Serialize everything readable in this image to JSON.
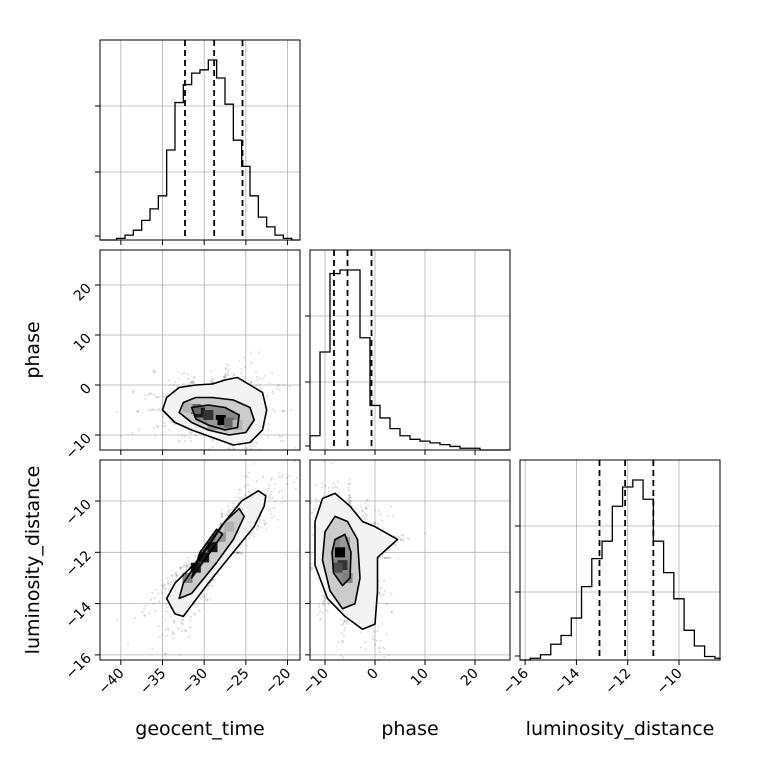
{
  "chart_data": {
    "type": "corner",
    "parameters": [
      "geocent_time",
      "phase",
      "luminosity_distance"
    ],
    "axis_labels": {
      "x": [
        "geocent_time",
        "phase",
        "luminosity_distance"
      ],
      "y": [
        "",
        "phase",
        "luminosity_distance"
      ]
    },
    "ranges": {
      "geocent_time": [
        -42.5,
        -18.5
      ],
      "phase": [
        -13.0,
        27.0
      ],
      "luminosity_distance": [
        -16.2,
        -8.4
      ]
    },
    "ticks": {
      "geocent_time": [
        -40,
        -35,
        -30,
        -25,
        -20
      ],
      "phase": [
        -10,
        0,
        10,
        20
      ],
      "luminosity_distance": [
        -16,
        -14,
        -12,
        -10
      ]
    },
    "grid": true,
    "quantiles": {
      "geocent_time": [
        -32.3,
        -28.8,
        -25.4
      ],
      "phase": [
        -8.2,
        -5.5,
        -0.7
      ],
      "luminosity_distance": [
        -13.1,
        -12.1,
        -11.0
      ]
    },
    "histograms": {
      "geocent_time": {
        "bin_edges": [
          -42.5,
          -41.5,
          -40.5,
          -39.5,
          -38.5,
          -37.5,
          -36.5,
          -35.5,
          -34.5,
          -33.5,
          -32.5,
          -31.5,
          -30.5,
          -29.5,
          -28.5,
          -27.5,
          -26.5,
          -25.5,
          -24.5,
          -23.5,
          -22.5,
          -21.5,
          -20.5,
          -19.5,
          -18.5
        ],
        "counts": [
          0,
          0,
          1,
          3,
          6,
          12,
          19,
          27,
          55,
          84,
          95,
          102,
          104,
          110,
          99,
          83,
          61,
          45,
          27,
          14,
          8,
          3,
          1,
          0
        ]
      },
      "phase": {
        "bin_edges": [
          -13,
          -11,
          -9,
          -7,
          -5,
          -3,
          -1,
          1,
          3,
          5,
          7,
          9,
          11,
          13,
          15,
          17,
          19,
          21,
          23,
          25,
          27
        ],
        "counts": [
          8,
          55,
          99,
          101,
          101,
          63,
          25,
          18,
          12,
          8,
          6,
          5,
          4,
          3,
          2,
          1,
          1,
          0,
          0,
          0
        ]
      },
      "luminosity_distance": {
        "bin_edges": [
          -16.2,
          -15.8,
          -15.4,
          -15.0,
          -14.6,
          -14.2,
          -13.8,
          -13.4,
          -13.0,
          -12.6,
          -12.2,
          -11.8,
          -11.4,
          -11.0,
          -10.6,
          -10.2,
          -9.8,
          -9.4,
          -9.0,
          -8.6,
          -8.4
        ],
        "counts": [
          0,
          1,
          3,
          9,
          14,
          24,
          42,
          58,
          68,
          88,
          99,
          103,
          92,
          68,
          50,
          35,
          17,
          8,
          2,
          1
        ]
      }
    },
    "density_2d": [
      {
        "x_param": "geocent_time",
        "y_param": "phase",
        "peak": [
          -29.5,
          -6.0
        ],
        "levels": [
          [
            [
              -34.5,
              -2.5
            ],
            [
              -33.0,
              -0.5
            ],
            [
              -31.0,
              0.0
            ],
            [
              -29.0,
              0.2
            ],
            [
              -27.5,
              1.0
            ],
            [
              -26.0,
              1.5
            ],
            [
              -24.5,
              0.0
            ],
            [
              -23.0,
              -1.5
            ],
            [
              -22.5,
              -5.0
            ],
            [
              -23.0,
              -9.0
            ],
            [
              -24.5,
              -11.5
            ],
            [
              -26.5,
              -12.0
            ],
            [
              -29.0,
              -10.5
            ],
            [
              -31.5,
              -9.0
            ],
            [
              -33.5,
              -7.5
            ],
            [
              -35.0,
              -5.0
            ]
          ],
          [
            [
              -32.5,
              -3.5
            ],
            [
              -31.0,
              -2.5
            ],
            [
              -29.0,
              -2.5
            ],
            [
              -26.5,
              -3.0
            ],
            [
              -24.5,
              -4.5
            ],
            [
              -24.0,
              -7.0
            ],
            [
              -25.0,
              -9.5
            ],
            [
              -27.0,
              -10.0
            ],
            [
              -29.5,
              -9.0
            ],
            [
              -31.5,
              -7.5
            ],
            [
              -33.0,
              -5.5
            ]
          ],
          [
            [
              -31.5,
              -4.5
            ],
            [
              -29.5,
              -4.0
            ],
            [
              -27.5,
              -4.5
            ],
            [
              -25.8,
              -6.0
            ],
            [
              -26.0,
              -8.5
            ],
            [
              -27.5,
              -9.0
            ],
            [
              -29.5,
              -8.0
            ],
            [
              -31.0,
              -6.8
            ]
          ]
        ],
        "grid_cells": [
          {
            "x": -30.5,
            "y": -5.5,
            "w": 0.9
          },
          {
            "x": -29.5,
            "y": -6.0,
            "w": 0.8
          },
          {
            "x": -28.0,
            "y": -7.0,
            "w": 1.0
          },
          {
            "x": -31.0,
            "y": -4.8,
            "w": 0.6
          },
          {
            "x": -27.0,
            "y": -7.5,
            "w": 0.6
          },
          {
            "x": -29.0,
            "y": -8.0,
            "w": 0.4
          },
          {
            "x": -32.0,
            "y": -4.5,
            "w": 0.3
          },
          {
            "x": -26.0,
            "y": -8.0,
            "w": 0.3
          }
        ]
      },
      {
        "x_param": "geocent_time",
        "y_param": "luminosity_distance",
        "peak": [
          -29.5,
          -12.0
        ],
        "levels": [
          [
            [
              -34.5,
              -13.8
            ],
            [
              -33.5,
              -14.4
            ],
            [
              -32.5,
              -14.5
            ],
            [
              -29.5,
              -13.2
            ],
            [
              -26.5,
              -12.0
            ],
            [
              -24.0,
              -11.0
            ],
            [
              -22.8,
              -10.2
            ],
            [
              -22.6,
              -9.8
            ],
            [
              -23.5,
              -9.6
            ],
            [
              -25.5,
              -10.0
            ],
            [
              -28.0,
              -11.0
            ],
            [
              -31.0,
              -12.4
            ],
            [
              -33.5,
              -13.2
            ]
          ],
          [
            [
              -33.0,
              -13.8
            ],
            [
              -31.5,
              -13.6
            ],
            [
              -28.5,
              -12.4
            ],
            [
              -26.5,
              -11.5
            ],
            [
              -25.2,
              -10.6
            ],
            [
              -25.8,
              -10.3
            ],
            [
              -27.5,
              -10.8
            ],
            [
              -30.0,
              -12.0
            ],
            [
              -32.5,
              -13.2
            ]
          ],
          [
            [
              -31.5,
              -13.0
            ],
            [
              -29.5,
              -12.1
            ],
            [
              -27.8,
              -11.3
            ],
            [
              -28.5,
              -11.1
            ],
            [
              -30.5,
              -12.0
            ]
          ]
        ],
        "grid_cells": [
          {
            "x": -31.0,
            "y": -12.6,
            "w": 0.9
          },
          {
            "x": -30.0,
            "y": -12.2,
            "w": 0.9
          },
          {
            "x": -29.0,
            "y": -11.8,
            "w": 0.9
          },
          {
            "x": -32.0,
            "y": -13.0,
            "w": 0.5
          },
          {
            "x": -28.0,
            "y": -11.4,
            "w": 0.4
          },
          {
            "x": -27.0,
            "y": -11.0,
            "w": 0.3
          }
        ]
      },
      {
        "x_param": "phase",
        "y_param": "luminosity_distance",
        "peak": [
          -6.5,
          -12.0
        ],
        "levels": [
          [
            [
              -12.0,
              -10.8
            ],
            [
              -10.5,
              -9.9
            ],
            [
              -8.0,
              -9.7
            ],
            [
              -5.0,
              -10.2
            ],
            [
              -2.5,
              -10.8
            ],
            [
              0.0,
              -11.0
            ],
            [
              4.5,
              -11.5
            ],
            [
              0.5,
              -12.2
            ],
            [
              0.5,
              -13.5
            ],
            [
              0.0,
              -14.8
            ],
            [
              -2.5,
              -15.0
            ],
            [
              -6.0,
              -14.5
            ],
            [
              -9.5,
              -13.8
            ],
            [
              -12.0,
              -12.5
            ]
          ],
          [
            [
              -10.0,
              -11.2
            ],
            [
              -8.0,
              -10.6
            ],
            [
              -5.5,
              -10.8
            ],
            [
              -3.5,
              -11.5
            ],
            [
              -3.0,
              -13.0
            ],
            [
              -4.0,
              -14.0
            ],
            [
              -6.5,
              -14.2
            ],
            [
              -9.0,
              -13.5
            ],
            [
              -10.5,
              -12.3
            ]
          ],
          [
            [
              -8.0,
              -11.5
            ],
            [
              -6.0,
              -11.3
            ],
            [
              -4.8,
              -12.0
            ],
            [
              -5.0,
              -13.0
            ],
            [
              -6.5,
              -13.3
            ],
            [
              -8.3,
              -12.8
            ],
            [
              -8.6,
              -12.0
            ]
          ]
        ],
        "grid_cells": [
          {
            "x": -7.0,
            "y": -12.0,
            "w": 1.0
          },
          {
            "x": -6.5,
            "y": -12.5,
            "w": 0.8
          },
          {
            "x": -7.5,
            "y": -12.6,
            "w": 0.7
          },
          {
            "x": -5.5,
            "y": -13.0,
            "w": 0.5
          },
          {
            "x": -6.0,
            "y": -11.6,
            "w": 0.4
          }
        ]
      }
    ]
  }
}
